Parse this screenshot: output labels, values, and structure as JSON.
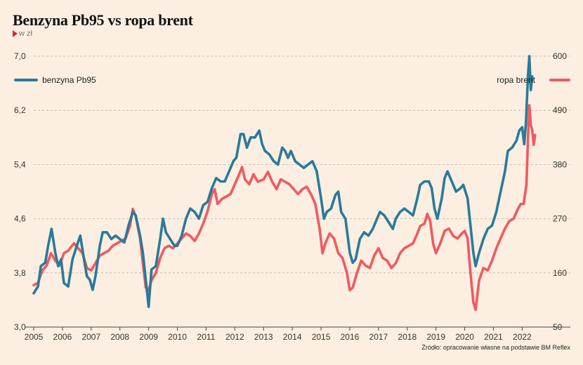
{
  "chart_data": {
    "type": "line",
    "title": "Benzyna Pb95 vs ropa brent",
    "subtitle": "w zł",
    "source": "Źródło: opracowanie własne na podstawie BM Reflex",
    "x_ticks": [
      "2005",
      "2006",
      "2007",
      "2008",
      "2009",
      "2010",
      "2011",
      "2012",
      "2013",
      "2014",
      "2015",
      "2016",
      "2017",
      "2018",
      "2019",
      "2020",
      "2021",
      "2022"
    ],
    "x_range": [
      2005.0,
      2022.65
    ],
    "y_left": {
      "ticks": [
        "7,0",
        "6,2",
        "5,4",
        "4,6",
        "3,8",
        "3,0"
      ],
      "range": [
        3.0,
        7.0
      ]
    },
    "y_right": {
      "ticks": [
        "600",
        "490",
        "380",
        "270",
        "160",
        "50"
      ],
      "range": [
        50,
        600
      ]
    },
    "grid": true,
    "colors": {
      "pb95": "#2a7a9a",
      "brent": "#f05a5f",
      "accent": "#e0262e"
    },
    "series": [
      {
        "name": "benzyna Pb95",
        "axis": "left",
        "color": "#2a7a9a",
        "points": [
          [
            2005.0,
            3.5
          ],
          [
            2005.15,
            3.6
          ],
          [
            2005.25,
            3.9
          ],
          [
            2005.4,
            3.95
          ],
          [
            2005.5,
            4.2
          ],
          [
            2005.62,
            4.45
          ],
          [
            2005.75,
            4.1
          ],
          [
            2005.85,
            3.9
          ],
          [
            2005.95,
            4.0
          ],
          [
            2006.05,
            3.65
          ],
          [
            2006.2,
            3.6
          ],
          [
            2006.35,
            4.0
          ],
          [
            2006.5,
            4.2
          ],
          [
            2006.62,
            4.35
          ],
          [
            2006.75,
            4.0
          ],
          [
            2006.85,
            3.75
          ],
          [
            2006.95,
            3.7
          ],
          [
            2007.05,
            3.55
          ],
          [
            2007.15,
            3.75
          ],
          [
            2007.3,
            4.2
          ],
          [
            2007.4,
            4.4
          ],
          [
            2007.55,
            4.4
          ],
          [
            2007.7,
            4.3
          ],
          [
            2007.85,
            4.35
          ],
          [
            2008.0,
            4.3
          ],
          [
            2008.15,
            4.25
          ],
          [
            2008.3,
            4.5
          ],
          [
            2008.45,
            4.7
          ],
          [
            2008.55,
            4.65
          ],
          [
            2008.7,
            4.35
          ],
          [
            2008.8,
            4.1
          ],
          [
            2008.9,
            3.7
          ],
          [
            2009.0,
            3.3
          ],
          [
            2009.1,
            3.85
          ],
          [
            2009.25,
            3.9
          ],
          [
            2009.4,
            4.3
          ],
          [
            2009.5,
            4.6
          ],
          [
            2009.6,
            4.4
          ],
          [
            2009.75,
            4.3
          ],
          [
            2009.9,
            4.2
          ],
          [
            2010.0,
            4.2
          ],
          [
            2010.15,
            4.35
          ],
          [
            2010.3,
            4.6
          ],
          [
            2010.45,
            4.75
          ],
          [
            2010.6,
            4.7
          ],
          [
            2010.75,
            4.6
          ],
          [
            2010.9,
            4.8
          ],
          [
            2011.05,
            4.85
          ],
          [
            2011.2,
            5.05
          ],
          [
            2011.35,
            5.2
          ],
          [
            2011.5,
            5.15
          ],
          [
            2011.65,
            5.15
          ],
          [
            2011.8,
            5.3
          ],
          [
            2011.95,
            5.45
          ],
          [
            2012.05,
            5.5
          ],
          [
            2012.2,
            5.85
          ],
          [
            2012.3,
            5.85
          ],
          [
            2012.42,
            5.65
          ],
          [
            2012.55,
            5.8
          ],
          [
            2012.7,
            5.8
          ],
          [
            2012.85,
            5.9
          ],
          [
            2012.95,
            5.7
          ],
          [
            2013.05,
            5.6
          ],
          [
            2013.2,
            5.55
          ],
          [
            2013.35,
            5.45
          ],
          [
            2013.5,
            5.4
          ],
          [
            2013.65,
            5.65
          ],
          [
            2013.75,
            5.6
          ],
          [
            2013.85,
            5.5
          ],
          [
            2013.95,
            5.6
          ],
          [
            2014.1,
            5.45
          ],
          [
            2014.25,
            5.4
          ],
          [
            2014.4,
            5.35
          ],
          [
            2014.55,
            5.4
          ],
          [
            2014.7,
            5.45
          ],
          [
            2014.85,
            5.3
          ],
          [
            2015.0,
            4.9
          ],
          [
            2015.1,
            4.6
          ],
          [
            2015.2,
            4.7
          ],
          [
            2015.35,
            4.75
          ],
          [
            2015.5,
            4.95
          ],
          [
            2015.6,
            5.0
          ],
          [
            2015.7,
            4.7
          ],
          [
            2015.85,
            4.6
          ],
          [
            2016.0,
            4.1
          ],
          [
            2016.1,
            3.95
          ],
          [
            2016.2,
            4.0
          ],
          [
            2016.35,
            4.3
          ],
          [
            2016.5,
            4.4
          ],
          [
            2016.65,
            4.35
          ],
          [
            2016.8,
            4.45
          ],
          [
            2016.95,
            4.6
          ],
          [
            2017.05,
            4.7
          ],
          [
            2017.2,
            4.65
          ],
          [
            2017.35,
            4.55
          ],
          [
            2017.5,
            4.45
          ],
          [
            2017.6,
            4.6
          ],
          [
            2017.75,
            4.7
          ],
          [
            2017.9,
            4.75
          ],
          [
            2018.05,
            4.7
          ],
          [
            2018.2,
            4.65
          ],
          [
            2018.35,
            4.9
          ],
          [
            2018.45,
            5.1
          ],
          [
            2018.6,
            5.15
          ],
          [
            2018.75,
            5.15
          ],
          [
            2018.85,
            5.05
          ],
          [
            2018.95,
            4.75
          ],
          [
            2019.05,
            4.6
          ],
          [
            2019.2,
            4.9
          ],
          [
            2019.3,
            5.2
          ],
          [
            2019.4,
            5.3
          ],
          [
            2019.55,
            5.15
          ],
          [
            2019.7,
            5.0
          ],
          [
            2019.85,
            5.05
          ],
          [
            2019.95,
            5.1
          ],
          [
            2020.1,
            4.9
          ],
          [
            2020.2,
            4.5
          ],
          [
            2020.3,
            4.1
          ],
          [
            2020.38,
            3.9
          ],
          [
            2020.5,
            4.1
          ],
          [
            2020.65,
            4.3
          ],
          [
            2020.8,
            4.45
          ],
          [
            2020.95,
            4.5
          ],
          [
            2021.1,
            4.7
          ],
          [
            2021.25,
            5.0
          ],
          [
            2021.4,
            5.3
          ],
          [
            2021.5,
            5.6
          ],
          [
            2021.65,
            5.65
          ],
          [
            2021.8,
            5.75
          ],
          [
            2021.9,
            5.9
          ],
          [
            2022.0,
            5.95
          ],
          [
            2022.07,
            5.7
          ],
          [
            2022.13,
            6.0
          ],
          [
            2022.2,
            6.7
          ],
          [
            2022.25,
            7.0
          ],
          [
            2022.3,
            6.5
          ],
          [
            2022.35,
            6.7
          ]
        ]
      },
      {
        "name": "ropa brent",
        "axis": "right",
        "color": "#f05a5f",
        "points": [
          [
            2005.0,
            135
          ],
          [
            2005.15,
            140
          ],
          [
            2005.3,
            165
          ],
          [
            2005.45,
            175
          ],
          [
            2005.6,
            200
          ],
          [
            2005.75,
            185
          ],
          [
            2005.9,
            175
          ],
          [
            2006.05,
            200
          ],
          [
            2006.2,
            205
          ],
          [
            2006.4,
            220
          ],
          [
            2006.55,
            210
          ],
          [
            2006.7,
            200
          ],
          [
            2006.85,
            170
          ],
          [
            2007.0,
            165
          ],
          [
            2007.15,
            180
          ],
          [
            2007.3,
            195
          ],
          [
            2007.45,
            200
          ],
          [
            2007.6,
            205
          ],
          [
            2007.75,
            215
          ],
          [
            2007.9,
            220
          ],
          [
            2008.05,
            225
          ],
          [
            2008.2,
            230
          ],
          [
            2008.35,
            255
          ],
          [
            2008.45,
            290
          ],
          [
            2008.55,
            275
          ],
          [
            2008.7,
            230
          ],
          [
            2008.8,
            180
          ],
          [
            2008.9,
            130
          ],
          [
            2009.0,
            125
          ],
          [
            2009.1,
            145
          ],
          [
            2009.25,
            160
          ],
          [
            2009.4,
            190
          ],
          [
            2009.55,
            210
          ],
          [
            2009.7,
            215
          ],
          [
            2009.85,
            210
          ],
          [
            2010.0,
            220
          ],
          [
            2010.15,
            230
          ],
          [
            2010.3,
            240
          ],
          [
            2010.45,
            235
          ],
          [
            2010.6,
            225
          ],
          [
            2010.75,
            240
          ],
          [
            2010.9,
            260
          ],
          [
            2011.05,
            285
          ],
          [
            2011.2,
            320
          ],
          [
            2011.3,
            330
          ],
          [
            2011.4,
            300
          ],
          [
            2011.55,
            310
          ],
          [
            2011.7,
            315
          ],
          [
            2011.85,
            320
          ],
          [
            2012.0,
            340
          ],
          [
            2012.15,
            360
          ],
          [
            2012.25,
            375
          ],
          [
            2012.35,
            350
          ],
          [
            2012.5,
            340
          ],
          [
            2012.65,
            360
          ],
          [
            2012.8,
            345
          ],
          [
            2013.0,
            350
          ],
          [
            2013.15,
            365
          ],
          [
            2013.3,
            345
          ],
          [
            2013.45,
            330
          ],
          [
            2013.6,
            350
          ],
          [
            2013.75,
            345
          ],
          [
            2013.9,
            340
          ],
          [
            2014.05,
            330
          ],
          [
            2014.2,
            320
          ],
          [
            2014.35,
            330
          ],
          [
            2014.5,
            335
          ],
          [
            2014.65,
            320
          ],
          [
            2014.8,
            300
          ],
          [
            2014.95,
            250
          ],
          [
            2015.05,
            200
          ],
          [
            2015.15,
            220
          ],
          [
            2015.3,
            240
          ],
          [
            2015.45,
            230
          ],
          [
            2015.6,
            200
          ],
          [
            2015.75,
            190
          ],
          [
            2015.9,
            160
          ],
          [
            2016.0,
            125
          ],
          [
            2016.1,
            130
          ],
          [
            2016.25,
            160
          ],
          [
            2016.4,
            185
          ],
          [
            2016.55,
            175
          ],
          [
            2016.7,
            170
          ],
          [
            2016.85,
            195
          ],
          [
            2017.0,
            210
          ],
          [
            2017.15,
            190
          ],
          [
            2017.3,
            185
          ],
          [
            2017.45,
            170
          ],
          [
            2017.6,
            180
          ],
          [
            2017.75,
            200
          ],
          [
            2017.9,
            210
          ],
          [
            2018.05,
            215
          ],
          [
            2018.2,
            220
          ],
          [
            2018.35,
            240
          ],
          [
            2018.45,
            255
          ],
          [
            2018.6,
            260
          ],
          [
            2018.7,
            280
          ],
          [
            2018.8,
            265
          ],
          [
            2018.9,
            220
          ],
          [
            2019.0,
            200
          ],
          [
            2019.15,
            220
          ],
          [
            2019.3,
            245
          ],
          [
            2019.45,
            250
          ],
          [
            2019.6,
            235
          ],
          [
            2019.75,
            230
          ],
          [
            2019.9,
            240
          ],
          [
            2020.0,
            245
          ],
          [
            2020.1,
            230
          ],
          [
            2020.2,
            160
          ],
          [
            2020.3,
            100
          ],
          [
            2020.38,
            85
          ],
          [
            2020.5,
            145
          ],
          [
            2020.65,
            170
          ],
          [
            2020.8,
            165
          ],
          [
            2020.95,
            185
          ],
          [
            2021.1,
            210
          ],
          [
            2021.25,
            230
          ],
          [
            2021.4,
            250
          ],
          [
            2021.55,
            265
          ],
          [
            2021.7,
            270
          ],
          [
            2021.85,
            290
          ],
          [
            2021.95,
            300
          ],
          [
            2022.05,
            300
          ],
          [
            2022.15,
            340
          ],
          [
            2022.2,
            430
          ],
          [
            2022.25,
            500
          ],
          [
            2022.3,
            460
          ],
          [
            2022.35,
            450
          ],
          [
            2022.4,
            420
          ],
          [
            2022.45,
            440
          ]
        ]
      }
    ]
  }
}
